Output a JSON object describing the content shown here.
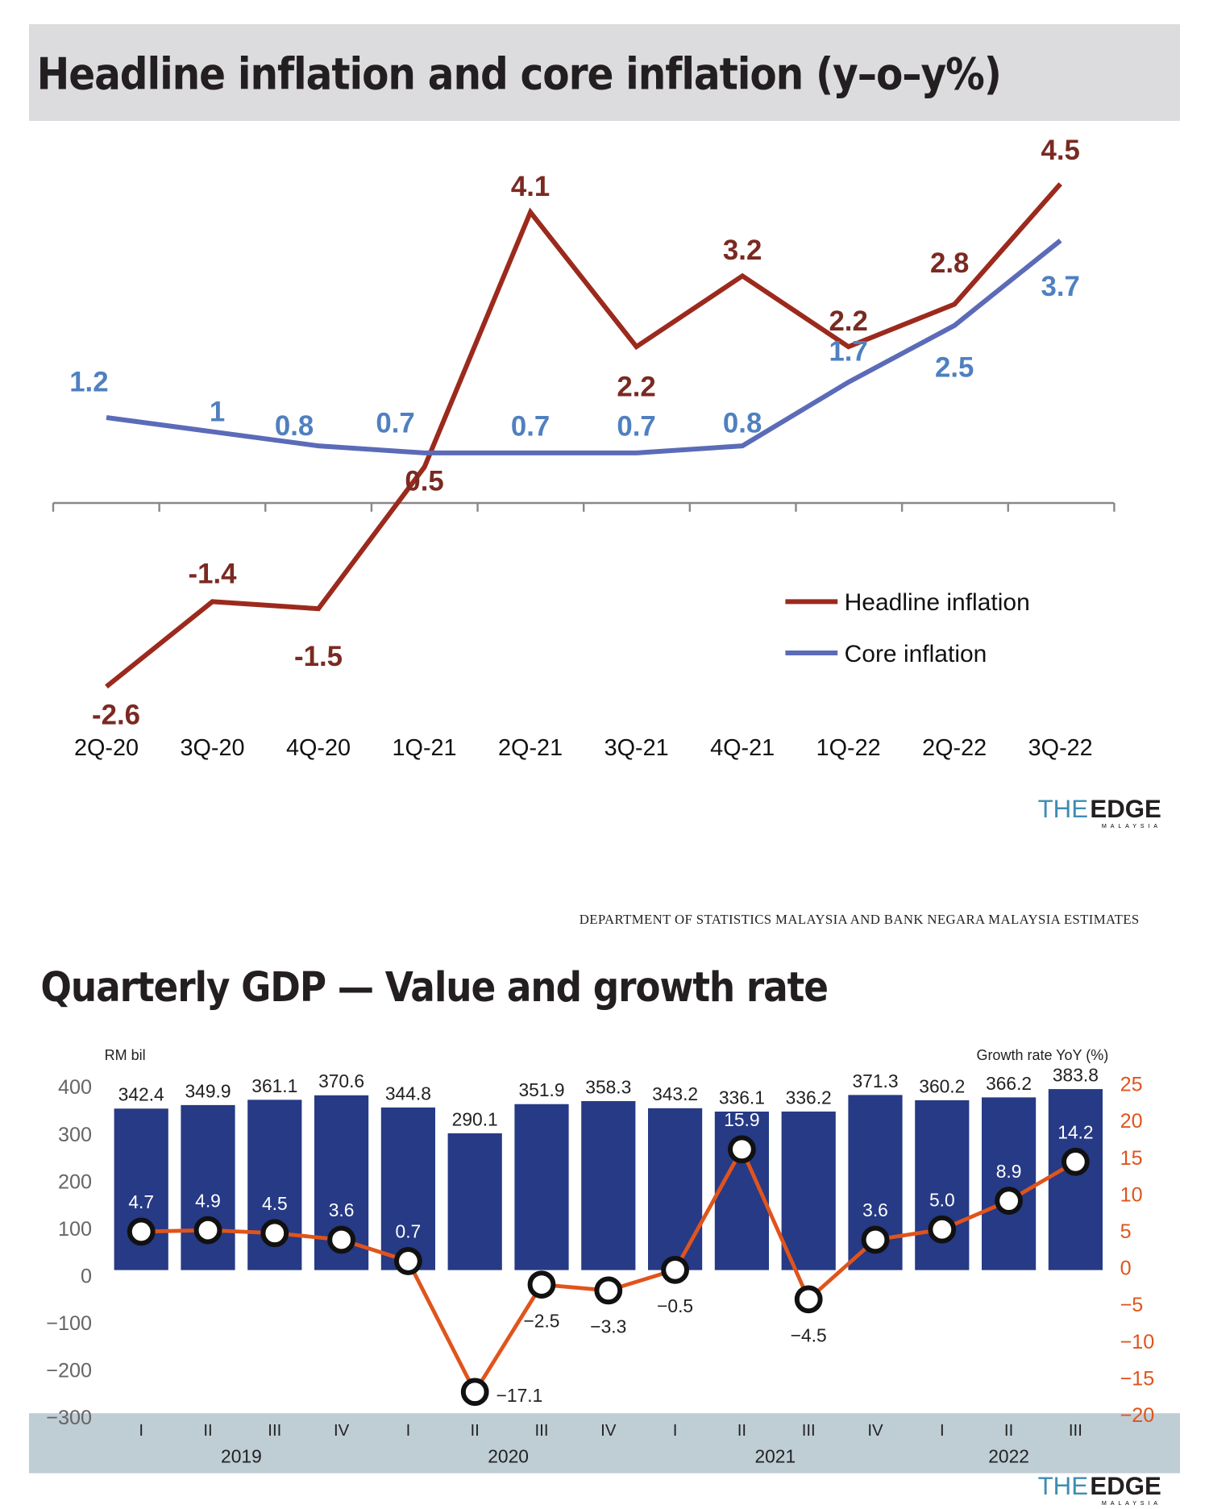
{
  "chart_data": [
    {
      "type": "line",
      "title": "Headline inflation and core inflation (y–o–y%)",
      "categories": [
        "2Q-20",
        "3Q-20",
        "4Q-20",
        "1Q-21",
        "2Q-21",
        "3Q-21",
        "4Q-21",
        "1Q-22",
        "2Q-22",
        "3Q-22"
      ],
      "series": [
        {
          "name": "Headline inflation",
          "values": [
            -2.6,
            -1.4,
            -1.5,
            0.5,
            4.1,
            2.2,
            3.2,
            2.2,
            2.8,
            4.5
          ],
          "color": "#9b2a1d",
          "label_color": "#7a2a22"
        },
        {
          "name": "Core inflation",
          "values": [
            1.2,
            1.0,
            0.8,
            0.7,
            0.7,
            0.7,
            0.8,
            1.7,
            2.5,
            3.7
          ],
          "color": "#5b6bb8",
          "label_color": "#4f80c0"
        }
      ],
      "legend": "bottom-right",
      "grid": false
    },
    {
      "type": "bar+line",
      "title": "Quarterly GDP — Value and growth rate",
      "categories": [
        "I",
        "II",
        "III",
        "IV",
        "I",
        "II",
        "III",
        "IV",
        "I",
        "II",
        "III",
        "IV",
        "I",
        "II",
        "III"
      ],
      "years": [
        {
          "label": "2019",
          "quarters": 4
        },
        {
          "label": "2020",
          "quarters": 4
        },
        {
          "label": "2021",
          "quarters": 4
        },
        {
          "label": "2022",
          "quarters": 3
        }
      ],
      "left_axis": {
        "label": "RM bil",
        "ticks": [
          "400",
          "300",
          "200",
          "100",
          "0",
          "−100",
          "−200",
          "−300"
        ],
        "range": [
          -300,
          400
        ]
      },
      "right_axis": {
        "label": "Growth rate YoY (%)",
        "ticks": [
          "25",
          "20",
          "15",
          "10",
          "5",
          "0",
          "−5",
          "−10",
          "−15",
          "−20"
        ],
        "range": [
          -20,
          25
        ]
      },
      "bars": {
        "values": [
          342.4,
          349.9,
          361.1,
          370.6,
          344.8,
          290.1,
          351.9,
          358.3,
          343.2,
          336.1,
          336.2,
          371.3,
          360.2,
          366.2,
          383.8
        ],
        "labels": [
          "342.4",
          "349.9",
          "361.1",
          "370.6",
          "344.8",
          "290.1",
          "351.9",
          "358.3",
          "343.2",
          "336.1",
          "336.2",
          "371.3",
          "360.2",
          "366.2",
          "383.8"
        ],
        "color": "#263a85"
      },
      "growth": {
        "values": [
          4.7,
          4.9,
          4.5,
          3.6,
          0.7,
          -17.1,
          -2.5,
          -3.3,
          -0.5,
          15.9,
          -4.5,
          3.6,
          5.0,
          8.9,
          14.2
        ],
        "labels": [
          "4.7",
          "4.9",
          "4.5",
          "3.6",
          "0.7",
          "−17.1",
          "−2.5",
          "−3.3",
          "−0.5",
          "15.9",
          "−4.5",
          "3.6",
          "5.0",
          "8.9",
          "14.2"
        ],
        "color": "#e0541c"
      }
    }
  ],
  "source": "DEPARTMENT OF STATISTICS MALAYSIA AND BANK NEGARA MALAYSIA ESTIMATES",
  "logo": {
    "the": "THE",
    "edge": "EDGE",
    "sub": "MALAYSIA"
  }
}
